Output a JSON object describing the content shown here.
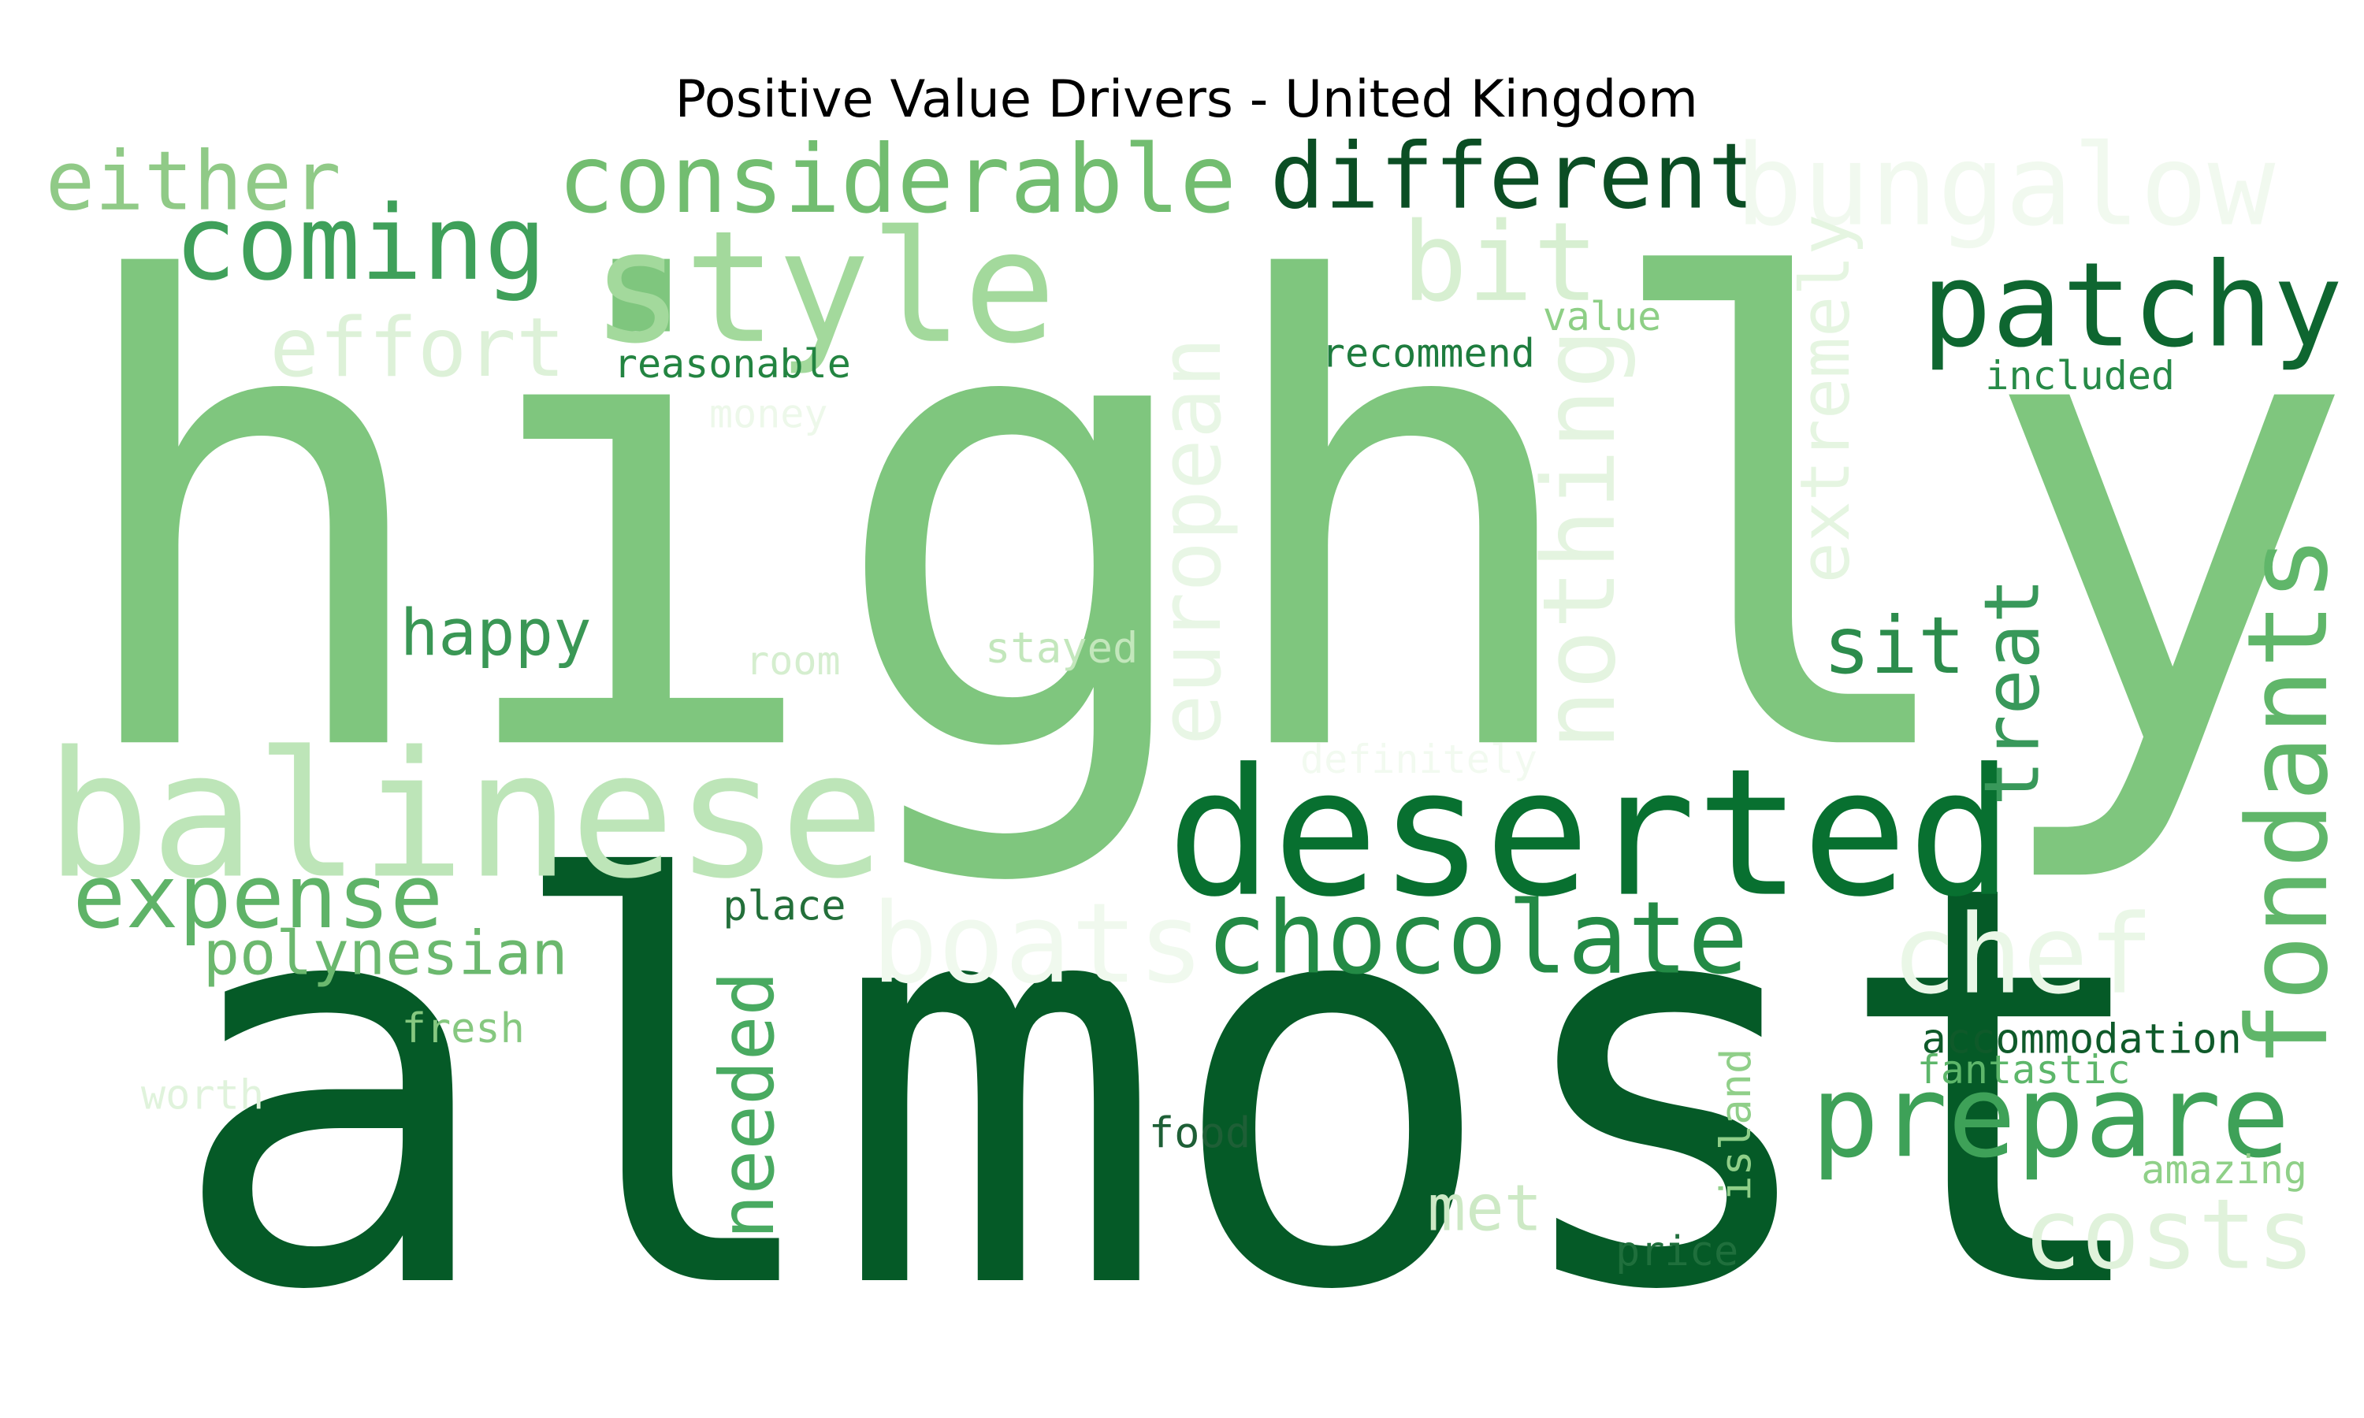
{
  "title": "Positive Value Drivers - United Kingdom",
  "palette": "Greens",
  "words": [
    {
      "text": "highly",
      "color": "#7fc67e"
    },
    {
      "text": "almost",
      "color": "#055a27"
    },
    {
      "text": "deserted",
      "color": "#087030"
    },
    {
      "text": "balinese",
      "color": "#bde5b8"
    },
    {
      "text": "style",
      "color": "#a3d99c"
    },
    {
      "text": "considerable",
      "color": "#72bd70"
    },
    {
      "text": "different",
      "color": "#0b4e24"
    },
    {
      "text": "bungalow",
      "color": "#f1f9ef"
    },
    {
      "text": "coming",
      "color": "#3fa05a"
    },
    {
      "text": "either",
      "color": "#90ca87"
    },
    {
      "text": "patchy",
      "color": "#0e6630"
    },
    {
      "text": "chocolate",
      "color": "#238a45"
    },
    {
      "text": "prepare",
      "color": "#3ea158"
    },
    {
      "text": "fondants",
      "color": "#60b66a"
    },
    {
      "text": "boats",
      "color": "#f0f9ee"
    },
    {
      "text": "chef",
      "color": "#eaf7e7"
    },
    {
      "text": "costs",
      "color": "#e0f2db"
    },
    {
      "text": "expense",
      "color": "#5fb368"
    },
    {
      "text": "effort",
      "color": "#ddf1d8"
    },
    {
      "text": "bit",
      "color": "#d7efd1"
    },
    {
      "text": "european",
      "color": "#e8f6e5"
    },
    {
      "text": "nothing",
      "color": "#e4f4e0"
    },
    {
      "text": "extremely",
      "color": "#e5f5e1"
    },
    {
      "text": "treat",
      "color": "#38985a"
    },
    {
      "text": "sit",
      "color": "#2c8c4c"
    },
    {
      "text": "needed",
      "color": "#49aa61"
    },
    {
      "text": "happy",
      "color": "#3a9755"
    },
    {
      "text": "polynesian",
      "color": "#6bb86e"
    },
    {
      "text": "reasonable",
      "color": "#238441"
    },
    {
      "text": "recommend",
      "color": "#1e7c3e"
    },
    {
      "text": "value",
      "color": "#8ecf86"
    },
    {
      "text": "included",
      "color": "#278a47"
    },
    {
      "text": "money",
      "color": "#edf8ea"
    },
    {
      "text": "room",
      "color": "#d5eecf"
    },
    {
      "text": "stayed",
      "color": "#c3e7bc"
    },
    {
      "text": "definitely",
      "color": "#f2faf0"
    },
    {
      "text": "place",
      "color": "#236f3a"
    },
    {
      "text": "fresh",
      "color": "#86c880"
    },
    {
      "text": "worth",
      "color": "#e0f3dc"
    },
    {
      "text": "food",
      "color": "#1e5f36"
    },
    {
      "text": "met",
      "color": "#cde9c5"
    },
    {
      "text": "island",
      "color": "#90cf89"
    },
    {
      "text": "price",
      "color": "#1f6f3c"
    },
    {
      "text": "accommodation",
      "color": "#0f5a2a"
    },
    {
      "text": "fantastic",
      "color": "#5db66a"
    },
    {
      "text": "amazing",
      "color": "#8fd088"
    }
  ]
}
